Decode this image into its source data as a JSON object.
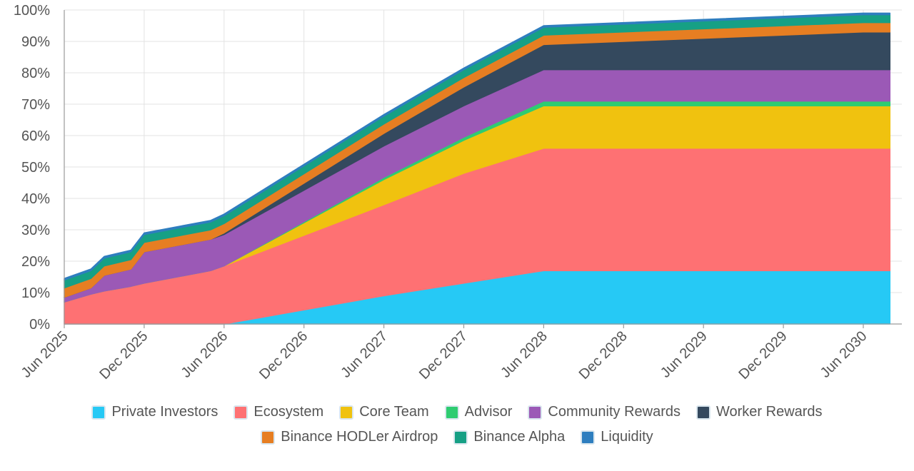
{
  "chart_data": {
    "type": "area",
    "stacked": true,
    "title": "",
    "xlabel": "",
    "ylabel": "",
    "ylim": [
      0,
      100
    ],
    "y_ticks": [
      "0%",
      "10%",
      "20%",
      "30%",
      "40%",
      "50%",
      "60%",
      "70%",
      "80%",
      "90%",
      "100%"
    ],
    "x_ticks": [
      "Jun 2025",
      "Dec 2025",
      "Jun 2026",
      "Dec 2026",
      "Jun 2027",
      "Dec 2027",
      "Jun 2028",
      "Dec 2028",
      "Jun 2029",
      "Dec 2029",
      "Jun 2030"
    ],
    "x": [
      "2025-06",
      "2025-08",
      "2025-09",
      "2025-11",
      "2025-12",
      "2026-05",
      "2026-06",
      "2027-06",
      "2027-12",
      "2028-06",
      "2030-06",
      "2030-08"
    ],
    "series": [
      {
        "name": "Private Investors",
        "color": "#26c9f5",
        "values": [
          0,
          0,
          0,
          0,
          0,
          0,
          0,
          9,
          13,
          17,
          17,
          17
        ]
      },
      {
        "name": "Ecosystem",
        "color": "#fe7173",
        "values": [
          7,
          9.5,
          10.5,
          12,
          13,
          17,
          18.5,
          29,
          35,
          39,
          39,
          39
        ]
      },
      {
        "name": "Core Team",
        "color": "#f0c20f",
        "values": [
          0,
          0,
          0,
          0,
          0,
          0,
          0,
          8,
          10.5,
          13.5,
          13.5,
          13.5
        ]
      },
      {
        "name": "Advisor",
        "color": "#2ecc71",
        "values": [
          0,
          0,
          0,
          0,
          0,
          0,
          0,
          0.7,
          1,
          1.5,
          1.5,
          1.5
        ]
      },
      {
        "name": "Community Rewards",
        "color": "#9b59b6",
        "values": [
          1.5,
          2,
          5,
          5.5,
          10,
          10,
          10,
          10,
          10,
          10,
          10,
          10
        ]
      },
      {
        "name": "Worker Rewards",
        "color": "#34495e",
        "values": [
          0,
          0,
          0,
          0,
          0,
          0,
          0.5,
          4,
          6,
          8,
          12,
          12
        ]
      },
      {
        "name": "Binance HODLer Airdrop",
        "color": "#e67e22",
        "values": [
          3,
          3,
          3,
          3,
          3,
          3,
          3,
          3,
          3,
          3,
          3,
          3
        ]
      },
      {
        "name": "Binance Alpha",
        "color": "#16a085",
        "values": [
          2.5,
          2.5,
          2.5,
          2.5,
          2.5,
          2.5,
          2.5,
          2.5,
          2.5,
          2.5,
          2.5,
          2.5
        ]
      },
      {
        "name": "Liquidity",
        "color": "#2e7ebf",
        "values": [
          0.5,
          0.5,
          0.5,
          0.5,
          0.5,
          0.5,
          0.5,
          0.5,
          0.5,
          0.5,
          0.5,
          0.5
        ]
      }
    ],
    "grid": true,
    "legend_position": "bottom-center"
  }
}
